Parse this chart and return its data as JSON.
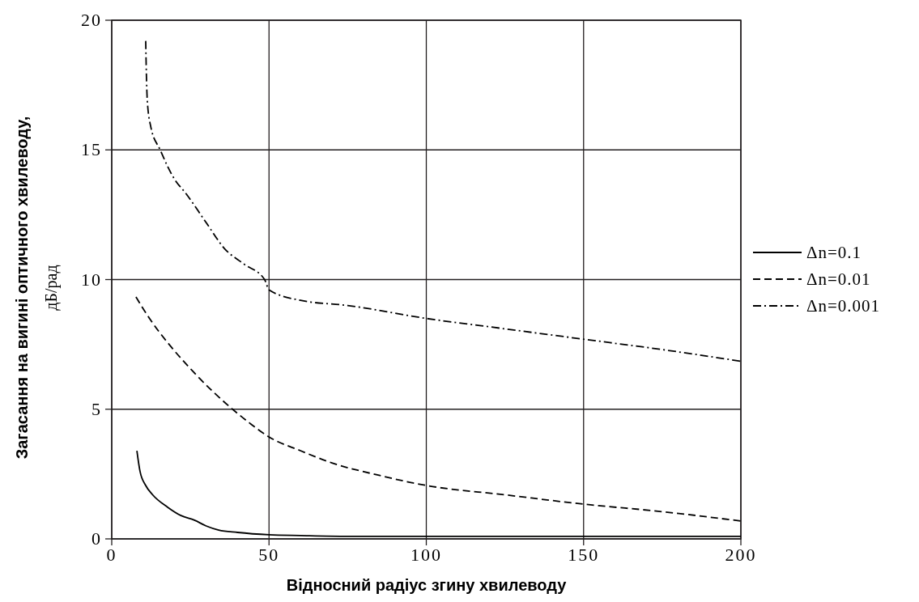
{
  "chart_data": {
    "type": "line",
    "xlabel": "Відносний радіус згину хвилеводу",
    "ylabel": "Загасання на вигині оптичного хвилеводу, дБ/рад",
    "xlim": [
      0,
      200
    ],
    "ylim": [
      0,
      20
    ],
    "xticks": [
      0,
      50,
      100,
      150,
      200
    ],
    "yticks": [
      0,
      5,
      10,
      15,
      20
    ],
    "grid": true,
    "legend": "right",
    "series": [
      {
        "name": "Δn=0.1",
        "color": "#000000",
        "line_style": "solid",
        "x": [
          8,
          9,
          10.8,
          13,
          17.8,
          22,
          26.3,
          30,
          34,
          40,
          50,
          60,
          75,
          100,
          150,
          200
        ],
        "values": [
          3.4,
          2.6,
          2.06,
          1.7,
          1.22,
          0.9,
          0.72,
          0.5,
          0.34,
          0.25,
          0.16,
          0.13,
          0.1,
          0.1,
          0.1,
          0.1
        ]
      },
      {
        "name": "Δn=0.01",
        "color": "#000000",
        "line_style": "dashed",
        "x": [
          7.7,
          12,
          18.5,
          25.5,
          32,
          38.4,
          44,
          50,
          60,
          70,
          85,
          100,
          125,
          150,
          175,
          200
        ],
        "values": [
          9.33,
          8.5,
          7.46,
          6.5,
          5.7,
          5.0,
          4.45,
          3.93,
          3.4,
          2.93,
          2.45,
          2.06,
          1.7,
          1.34,
          1.05,
          0.69
        ]
      },
      {
        "name": "Δn=0.001",
        "color": "#000000",
        "line_style": "dashdot",
        "x": [
          10.8,
          11,
          11.3,
          12.4,
          15.4,
          19.8,
          23.7,
          30,
          35.8,
          42,
          48.6,
          50,
          60,
          75,
          100,
          125,
          150,
          175,
          200
        ],
        "values": [
          19.2,
          18.0,
          16.9,
          15.9,
          15.0,
          13.9,
          13.3,
          12.2,
          11.2,
          10.6,
          10.0,
          9.6,
          9.2,
          9.0,
          8.5,
          8.1,
          7.7,
          7.3,
          6.85
        ]
      }
    ]
  }
}
